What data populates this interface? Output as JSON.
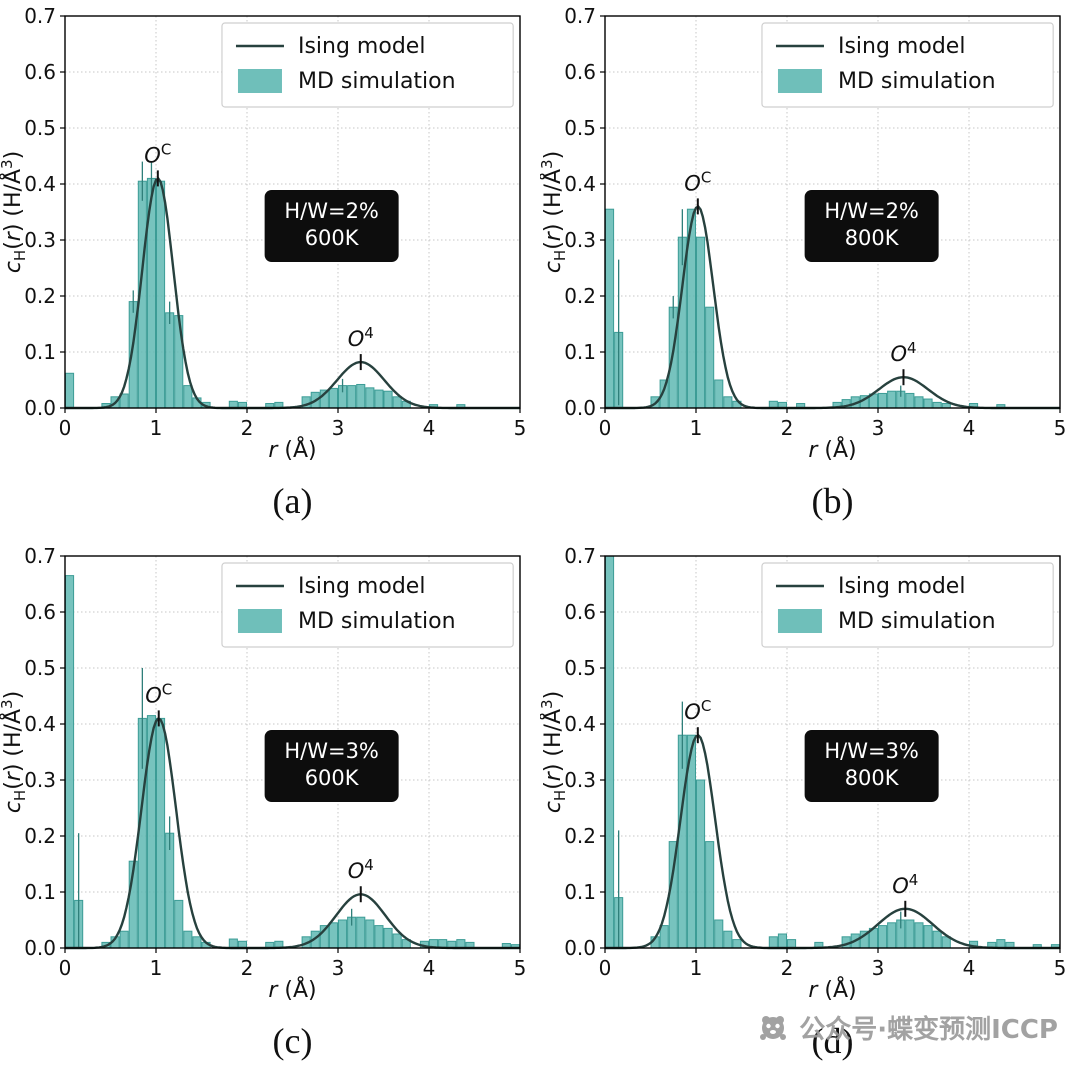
{
  "figure": {
    "background": "#ffffff",
    "colors": {
      "bar_fill": "#5fb8b3",
      "bar_edge": "#3c9c96",
      "err": "#2f7f7a",
      "line": "#27413e",
      "grid": "#c7c7c7",
      "annotation_bg": "#0d0d0d",
      "annotation_fg": "#ffffff",
      "legend_border": "#cfcfcf",
      "axis": "#000000"
    },
    "watermark": {
      "text": "公众号·蝶变预测ICCP",
      "icon": "panda-logo"
    }
  },
  "chart_data": [
    {
      "id": "a",
      "type": "bar",
      "caption": "(a)",
      "xlabel_parts": [
        {
          "t": "r",
          "i": 1
        },
        {
          "t": " (Å)"
        }
      ],
      "ylabel_parts": [
        {
          "t": "c",
          "i": 1
        },
        {
          "t": "H",
          "dy": 5,
          "fs": 15
        },
        {
          "t": "(",
          "dy": -5
        },
        {
          "t": "r",
          "i": 1
        },
        {
          "t": ") (H/Å"
        },
        {
          "t": "3",
          "dy": -8,
          "fs": 15
        },
        {
          "t": ")",
          "dy": 8
        }
      ],
      "xlim": [
        0,
        5
      ],
      "ylim": [
        0,
        0.7
      ],
      "xticks": [
        0,
        1,
        2,
        3,
        4,
        5
      ],
      "xticklabels": [
        "0",
        "1",
        "2",
        "3",
        "4",
        "5"
      ],
      "yticks": [
        0,
        0.1,
        0.2,
        0.3,
        0.4,
        0.5,
        0.6,
        0.7
      ],
      "yticklabels": [
        "0.0",
        "0.1",
        "0.2",
        "0.3",
        "0.4",
        "0.5",
        "0.6",
        "0.7"
      ],
      "legend": [
        "Ising model",
        "MD simulation"
      ],
      "annotation": [
        "H/W=2%",
        "600K"
      ],
      "annotation_pos": [
        2.93,
        0.325
      ],
      "peaks": [
        {
          "x": 1.02,
          "y": 0.41,
          "base": "O",
          "sup": "C"
        },
        {
          "x": 3.25,
          "y": 0.082,
          "base": "O",
          "sup": "4"
        }
      ],
      "gauss": [
        {
          "A": 0.41,
          "mu": 1.02,
          "s": 0.17
        },
        {
          "A": 0.082,
          "mu": 3.25,
          "s": 0.26
        }
      ],
      "bin_width": 0.1,
      "bars": [
        [
          0.05,
          0.062
        ],
        [
          0.45,
          0.008
        ],
        [
          0.55,
          0.02
        ],
        [
          0.65,
          0.025
        ],
        [
          0.75,
          0.19,
          0.02
        ],
        [
          0.85,
          0.405,
          0.035
        ],
        [
          0.95,
          0.41,
          0.03
        ],
        [
          1.05,
          0.405
        ],
        [
          1.15,
          0.17,
          0.02
        ],
        [
          1.25,
          0.165
        ],
        [
          1.35,
          0.04
        ],
        [
          1.45,
          0.018
        ],
        [
          1.55,
          0.01
        ],
        [
          1.85,
          0.012
        ],
        [
          1.95,
          0.01
        ],
        [
          2.25,
          0.008
        ],
        [
          2.35,
          0.01
        ],
        [
          2.65,
          0.02
        ],
        [
          2.75,
          0.028
        ],
        [
          2.85,
          0.032
        ],
        [
          2.95,
          0.035
        ],
        [
          3.05,
          0.04,
          0.012
        ],
        [
          3.15,
          0.04
        ],
        [
          3.25,
          0.042
        ],
        [
          3.35,
          0.036
        ],
        [
          3.45,
          0.032
        ],
        [
          3.55,
          0.03
        ],
        [
          3.65,
          0.02
        ],
        [
          3.75,
          0.012
        ],
        [
          4.05,
          0.006
        ],
        [
          4.35,
          0.006
        ]
      ]
    },
    {
      "id": "b",
      "type": "bar",
      "caption": "(b)",
      "xlabel_parts": [
        {
          "t": "r",
          "i": 1
        },
        {
          "t": " (Å)"
        }
      ],
      "ylabel_parts": [
        {
          "t": "c",
          "i": 1
        },
        {
          "t": "H",
          "dy": 5,
          "fs": 15
        },
        {
          "t": "(",
          "dy": -5
        },
        {
          "t": "r",
          "i": 1
        },
        {
          "t": ") (H/Å"
        },
        {
          "t": "3",
          "dy": -8,
          "fs": 15
        },
        {
          "t": ")",
          "dy": 8
        }
      ],
      "xlim": [
        0,
        5
      ],
      "ylim": [
        0,
        0.7
      ],
      "xticks": [
        0,
        1,
        2,
        3,
        4,
        5
      ],
      "xticklabels": [
        "0",
        "1",
        "2",
        "3",
        "4",
        "5"
      ],
      "yticks": [
        0,
        0.1,
        0.2,
        0.3,
        0.4,
        0.5,
        0.6,
        0.7
      ],
      "yticklabels": [
        "0.0",
        "0.1",
        "0.2",
        "0.3",
        "0.4",
        "0.5",
        "0.6",
        "0.7"
      ],
      "legend": [
        "Ising model",
        "MD simulation"
      ],
      "annotation": [
        "H/W=2%",
        "800K"
      ],
      "annotation_pos": [
        2.93,
        0.325
      ],
      "peaks": [
        {
          "x": 1.02,
          "y": 0.36,
          "base": "O",
          "sup": "C"
        },
        {
          "x": 3.28,
          "y": 0.055,
          "base": "O",
          "sup": "4"
        }
      ],
      "gauss": [
        {
          "A": 0.36,
          "mu": 1.02,
          "s": 0.17
        },
        {
          "A": 0.055,
          "mu": 3.28,
          "s": 0.27
        }
      ],
      "bin_width": 0.1,
      "bars": [
        [
          0.05,
          0.355
        ],
        [
          0.15,
          0.135,
          0.13
        ],
        [
          0.55,
          0.02
        ],
        [
          0.65,
          0.05
        ],
        [
          0.75,
          0.18,
          0.02
        ],
        [
          0.85,
          0.305,
          0.05
        ],
        [
          0.95,
          0.355
        ],
        [
          1.05,
          0.305
        ],
        [
          1.15,
          0.18
        ],
        [
          1.25,
          0.05
        ],
        [
          1.35,
          0.02
        ],
        [
          1.45,
          0.012
        ],
        [
          1.85,
          0.012
        ],
        [
          1.95,
          0.01
        ],
        [
          2.15,
          0.008
        ],
        [
          2.55,
          0.01
        ],
        [
          2.65,
          0.015
        ],
        [
          2.75,
          0.02
        ],
        [
          2.85,
          0.022
        ],
        [
          2.95,
          0.025
        ],
        [
          3.05,
          0.026
        ],
        [
          3.15,
          0.03
        ],
        [
          3.25,
          0.03,
          0.01
        ],
        [
          3.35,
          0.026
        ],
        [
          3.45,
          0.02
        ],
        [
          3.55,
          0.016
        ],
        [
          3.65,
          0.01
        ],
        [
          3.75,
          0.008
        ],
        [
          4.05,
          0.008
        ],
        [
          4.35,
          0.006
        ]
      ]
    },
    {
      "id": "c",
      "type": "bar",
      "caption": "(c)",
      "xlabel_parts": [
        {
          "t": "r",
          "i": 1
        },
        {
          "t": " (Å)"
        }
      ],
      "ylabel_parts": [
        {
          "t": "c",
          "i": 1
        },
        {
          "t": "H",
          "dy": 5,
          "fs": 15
        },
        {
          "t": "(",
          "dy": -5
        },
        {
          "t": "r",
          "i": 1
        },
        {
          "t": ") (H/Å"
        },
        {
          "t": "3",
          "dy": -8,
          "fs": 15
        },
        {
          "t": ")",
          "dy": 8
        }
      ],
      "xlim": [
        0,
        5
      ],
      "ylim": [
        0,
        0.7
      ],
      "xticks": [
        0,
        1,
        2,
        3,
        4,
        5
      ],
      "xticklabels": [
        "0",
        "1",
        "2",
        "3",
        "4",
        "5"
      ],
      "yticks": [
        0,
        0.1,
        0.2,
        0.3,
        0.4,
        0.5,
        0.6,
        0.7
      ],
      "yticklabels": [
        "0.0",
        "0.1",
        "0.2",
        "0.3",
        "0.4",
        "0.5",
        "0.6",
        "0.7"
      ],
      "legend": [
        "Ising model",
        "MD simulation"
      ],
      "annotation": [
        "H/W=3%",
        "600K"
      ],
      "annotation_pos": [
        2.93,
        0.325
      ],
      "peaks": [
        {
          "x": 1.03,
          "y": 0.41,
          "base": "O",
          "sup": "C"
        },
        {
          "x": 3.25,
          "y": 0.096,
          "base": "O",
          "sup": "4"
        }
      ],
      "gauss": [
        {
          "A": 0.41,
          "mu": 1.03,
          "s": 0.19
        },
        {
          "A": 0.096,
          "mu": 3.25,
          "s": 0.27
        }
      ],
      "bin_width": 0.1,
      "bars": [
        [
          0.05,
          0.665
        ],
        [
          0.15,
          0.085,
          0.12
        ],
        [
          0.45,
          0.01
        ],
        [
          0.55,
          0.02
        ],
        [
          0.65,
          0.03
        ],
        [
          0.75,
          0.155
        ],
        [
          0.85,
          0.41,
          0.09
        ],
        [
          0.95,
          0.415
        ],
        [
          1.05,
          0.41
        ],
        [
          1.15,
          0.205,
          0.03
        ],
        [
          1.25,
          0.085
        ],
        [
          1.35,
          0.03
        ],
        [
          1.45,
          0.02
        ],
        [
          1.55,
          0.01
        ],
        [
          1.85,
          0.016
        ],
        [
          1.95,
          0.012
        ],
        [
          2.25,
          0.01
        ],
        [
          2.35,
          0.012
        ],
        [
          2.65,
          0.02
        ],
        [
          2.75,
          0.03
        ],
        [
          2.85,
          0.04
        ],
        [
          2.95,
          0.045
        ],
        [
          3.05,
          0.05
        ],
        [
          3.15,
          0.055,
          0.015
        ],
        [
          3.25,
          0.055
        ],
        [
          3.35,
          0.05
        ],
        [
          3.45,
          0.04
        ],
        [
          3.55,
          0.035
        ],
        [
          3.65,
          0.025
        ],
        [
          3.75,
          0.015
        ],
        [
          3.95,
          0.012
        ],
        [
          4.05,
          0.015
        ],
        [
          4.15,
          0.015
        ],
        [
          4.25,
          0.012
        ],
        [
          4.35,
          0.015
        ],
        [
          4.45,
          0.01
        ],
        [
          4.85,
          0.008
        ],
        [
          4.95,
          0.006
        ]
      ]
    },
    {
      "id": "d",
      "type": "bar",
      "caption": "(d)",
      "xlabel_parts": [
        {
          "t": "r",
          "i": 1
        },
        {
          "t": " (Å)"
        }
      ],
      "ylabel_parts": [
        {
          "t": "c",
          "i": 1
        },
        {
          "t": "H",
          "dy": 5,
          "fs": 15
        },
        {
          "t": "(",
          "dy": -5
        },
        {
          "t": "r",
          "i": 1
        },
        {
          "t": ") (H/Å"
        },
        {
          "t": "3",
          "dy": -8,
          "fs": 15
        },
        {
          "t": ")",
          "dy": 8
        }
      ],
      "xlim": [
        0,
        5
      ],
      "ylim": [
        0,
        0.7
      ],
      "xticks": [
        0,
        1,
        2,
        3,
        4,
        5
      ],
      "xticklabels": [
        "0",
        "1",
        "2",
        "3",
        "4",
        "5"
      ],
      "yticks": [
        0,
        0.1,
        0.2,
        0.3,
        0.4,
        0.5,
        0.6,
        0.7
      ],
      "yticklabels": [
        "0.0",
        "0.1",
        "0.2",
        "0.3",
        "0.4",
        "0.5",
        "0.6",
        "0.7"
      ],
      "legend": [
        "Ising model",
        "MD simulation"
      ],
      "annotation": [
        "H/W=3%",
        "800K"
      ],
      "annotation_pos": [
        2.93,
        0.325
      ],
      "peaks": [
        {
          "x": 1.02,
          "y": 0.38,
          "base": "O",
          "sup": "C"
        },
        {
          "x": 3.3,
          "y": 0.07,
          "base": "O",
          "sup": "4"
        }
      ],
      "gauss": [
        {
          "A": 0.38,
          "mu": 1.02,
          "s": 0.19
        },
        {
          "A": 0.07,
          "mu": 3.3,
          "s": 0.3
        }
      ],
      "bin_width": 0.1,
      "bars": [
        [
          0.05,
          0.7
        ],
        [
          0.15,
          0.09,
          0.12
        ],
        [
          0.55,
          0.02
        ],
        [
          0.65,
          0.04
        ],
        [
          0.75,
          0.19
        ],
        [
          0.85,
          0.38,
          0.06
        ],
        [
          0.95,
          0.38
        ],
        [
          1.05,
          0.3
        ],
        [
          1.15,
          0.19
        ],
        [
          1.25,
          0.05
        ],
        [
          1.35,
          0.03
        ],
        [
          1.45,
          0.015
        ],
        [
          1.85,
          0.02
        ],
        [
          1.95,
          0.025
        ],
        [
          2.05,
          0.015
        ],
        [
          2.35,
          0.01
        ],
        [
          2.65,
          0.02
        ],
        [
          2.75,
          0.025
        ],
        [
          2.85,
          0.03
        ],
        [
          2.95,
          0.035
        ],
        [
          3.05,
          0.04
        ],
        [
          3.15,
          0.045
        ],
        [
          3.25,
          0.05,
          0.015
        ],
        [
          3.35,
          0.05
        ],
        [
          3.45,
          0.045
        ],
        [
          3.55,
          0.04
        ],
        [
          3.65,
          0.03
        ],
        [
          3.75,
          0.02
        ],
        [
          4.05,
          0.012
        ],
        [
          4.25,
          0.01
        ],
        [
          4.35,
          0.015
        ],
        [
          4.45,
          0.01
        ],
        [
          4.75,
          0.006
        ],
        [
          4.95,
          0.006
        ]
      ]
    }
  ]
}
